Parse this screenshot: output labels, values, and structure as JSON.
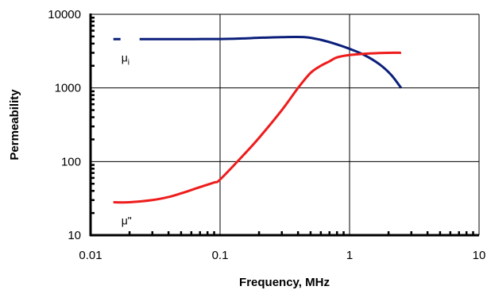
{
  "chart_data": {
    "type": "line",
    "xlabel": "Frequency, MHz",
    "ylabel": "Permeability",
    "x_scale": "log",
    "y_scale": "log",
    "xlim": [
      0.01,
      10
    ],
    "ylim": [
      10,
      10000
    ],
    "x_ticks": [
      {
        "value": 0.01,
        "label": "0.01"
      },
      {
        "value": 0.1,
        "label": "0.1"
      },
      {
        "value": 1,
        "label": "1"
      },
      {
        "value": 10,
        "label": "10"
      }
    ],
    "y_ticks": [
      {
        "value": 10,
        "label": "10"
      },
      {
        "value": 100,
        "label": "100"
      },
      {
        "value": 1000,
        "label": "1000"
      },
      {
        "value": 10000,
        "label": "10000"
      }
    ],
    "grid": true,
    "series": [
      {
        "name": "μi",
        "label_main": "μ",
        "label_sub": "i",
        "color": "#0b1f7a",
        "x": [
          0.015,
          0.017,
          0.025,
          0.05,
          0.1,
          0.15,
          0.2,
          0.3,
          0.45,
          0.6,
          0.8,
          1.0,
          1.3,
          1.7,
          2.1,
          2.5
        ],
        "y": [
          4600,
          4600,
          4600,
          4600,
          4620,
          4700,
          4800,
          4900,
          4900,
          4500,
          3900,
          3400,
          2800,
          2100,
          1500,
          1000
        ]
      },
      {
        "name": "μ\"",
        "label_main": "μ\"",
        "label_sub": "",
        "color": "#ee1c1c",
        "x": [
          0.015,
          0.02,
          0.03,
          0.04,
          0.05,
          0.07,
          0.09,
          0.1,
          0.15,
          0.2,
          0.3,
          0.4,
          0.5,
          0.6,
          0.7,
          0.8,
          1.0,
          1.5,
          2.0,
          2.5
        ],
        "y": [
          28,
          28,
          30,
          33,
          37,
          45,
          52,
          57,
          120,
          210,
          500,
          1000,
          1600,
          2000,
          2300,
          2600,
          2800,
          2950,
          3000,
          3000
        ]
      }
    ]
  }
}
